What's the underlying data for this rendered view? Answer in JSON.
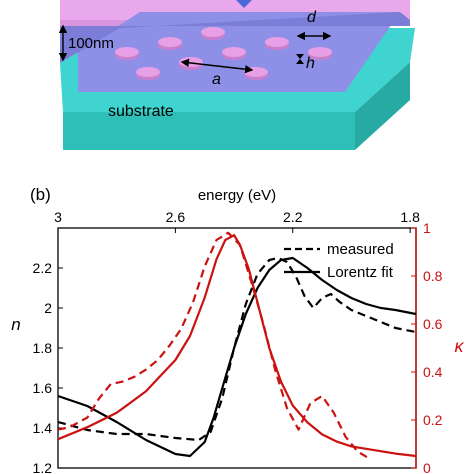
{
  "schematic": {
    "label_thickness": "100nm",
    "label_d": "d",
    "label_a": "a",
    "label_h": "h",
    "label_substrate": "substrate",
    "colors": {
      "substrate_top": "#3fd4cf",
      "substrate_front": "#2fbfb9",
      "substrate_side": "#27aaa4",
      "film_top": "#e9a8ec",
      "film_front": "#d995dd",
      "layer_top": "#8e8fe6",
      "layer_front": "#7b7dd6",
      "disk_top": "#e7a0e5",
      "disk_side": "#c97fcc",
      "marker": "#4a68d8"
    }
  },
  "panel_label": "(b)",
  "chart_data": {
    "type": "line",
    "top_axis_label": "energy (eV)",
    "top_ticks": [
      {
        "label": "3",
        "energy": 3.0
      },
      {
        "label": "2.6",
        "energy": 2.6
      },
      {
        "label": "2.2",
        "energy": 2.2
      },
      {
        "label": "1.8",
        "energy": 1.8
      }
    ],
    "energy_range": [
      3.0,
      1.78
    ],
    "ylabel_left": "n",
    "ylim_left": [
      1.2,
      2.4
    ],
    "left_ticks": [
      "1.2",
      "1.4",
      "1.6",
      "1.8",
      "2",
      "2.2"
    ],
    "ylabel_right": "κ",
    "ylim_right": [
      0,
      1
    ],
    "right_ticks": [
      "0",
      "0.2",
      "0.4",
      "0.6",
      "0.8",
      "1"
    ],
    "legend": {
      "placement": "top-right",
      "entries": [
        "measured",
        "Lorentz fit"
      ]
    },
    "series": [
      {
        "name": "measured",
        "axis": "left",
        "style": "dashed",
        "color": "#000000",
        "x": [
          3.0,
          2.9,
          2.8,
          2.7,
          2.6,
          2.52,
          2.48,
          2.44,
          2.4,
          2.36,
          2.32,
          2.28,
          2.25,
          2.22,
          2.19,
          2.16,
          2.13,
          2.1,
          2.07,
          2.04,
          2.0,
          1.95,
          1.9,
          1.85,
          1.78
        ],
        "y": [
          1.43,
          1.39,
          1.37,
          1.37,
          1.35,
          1.34,
          1.38,
          1.55,
          1.8,
          2.02,
          2.17,
          2.24,
          2.25,
          2.23,
          2.16,
          2.06,
          2.0,
          2.05,
          2.07,
          2.03,
          1.99,
          1.96,
          1.93,
          1.9,
          1.88
        ]
      },
      {
        "name": "Lorentz fit",
        "axis": "left",
        "style": "solid",
        "color": "#000000",
        "x": [
          3.0,
          2.9,
          2.8,
          2.7,
          2.6,
          2.55,
          2.5,
          2.47,
          2.44,
          2.4,
          2.36,
          2.32,
          2.28,
          2.24,
          2.2,
          2.15,
          2.1,
          2.05,
          2.0,
          1.95,
          1.9,
          1.85,
          1.78
        ],
        "y": [
          1.56,
          1.51,
          1.43,
          1.34,
          1.27,
          1.26,
          1.33,
          1.45,
          1.6,
          1.8,
          1.97,
          2.1,
          2.19,
          2.24,
          2.25,
          2.2,
          2.14,
          2.09,
          2.05,
          2.02,
          2.0,
          1.99,
          1.97
        ]
      },
      {
        "name": "κ measured",
        "axis": "right",
        "style": "dashed",
        "color": "#cc1111",
        "x": [
          3.0,
          2.96,
          2.9,
          2.86,
          2.82,
          2.78,
          2.74,
          2.7,
          2.66,
          2.62,
          2.58,
          2.54,
          2.5,
          2.46,
          2.42,
          2.38,
          2.34,
          2.3,
          2.26,
          2.22,
          2.18,
          2.14,
          2.1,
          2.06,
          2.02,
          1.98,
          1.94
        ],
        "y": [
          0.16,
          0.17,
          0.21,
          0.29,
          0.35,
          0.36,
          0.38,
          0.41,
          0.45,
          0.51,
          0.58,
          0.69,
          0.84,
          0.95,
          0.98,
          0.93,
          0.77,
          0.6,
          0.41,
          0.25,
          0.16,
          0.27,
          0.3,
          0.23,
          0.13,
          0.07,
          0.04
        ]
      },
      {
        "name": "κ Lorentz fit",
        "axis": "right",
        "style": "solid",
        "color": "#cc1111",
        "x": [
          3.0,
          2.9,
          2.8,
          2.7,
          2.6,
          2.55,
          2.5,
          2.46,
          2.43,
          2.4,
          2.38,
          2.35,
          2.32,
          2.28,
          2.24,
          2.2,
          2.15,
          2.1,
          2.05,
          2.0,
          1.95,
          1.9,
          1.85,
          1.78
        ],
        "y": [
          0.12,
          0.17,
          0.23,
          0.32,
          0.45,
          0.55,
          0.71,
          0.87,
          0.95,
          0.97,
          0.93,
          0.83,
          0.69,
          0.5,
          0.36,
          0.26,
          0.19,
          0.14,
          0.11,
          0.09,
          0.08,
          0.07,
          0.06,
          0.05
        ]
      }
    ]
  }
}
